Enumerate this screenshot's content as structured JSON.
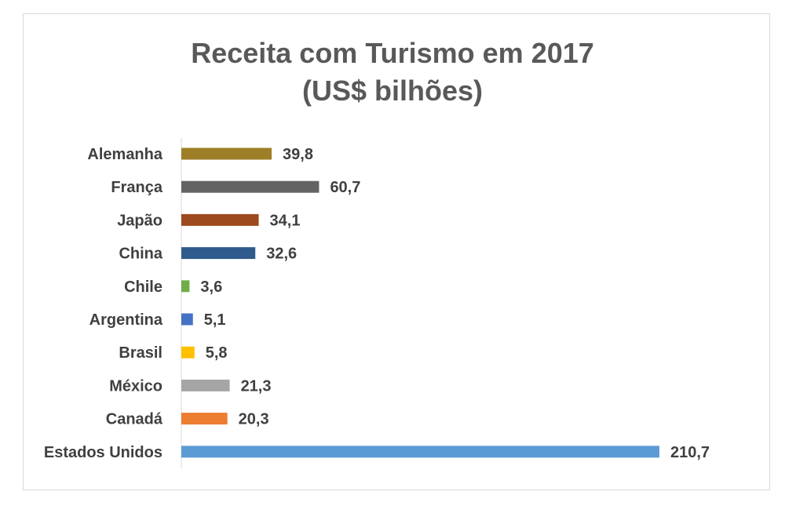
{
  "chart_data": {
    "type": "bar",
    "orientation": "horizontal",
    "title_line1": "Receita com Turismo em 2017",
    "title_line2": "(US$ bilhões)",
    "categories": [
      "Alemanha",
      "França",
      "Japão",
      "China",
      "Chile",
      "Argentina",
      "Brasil",
      "México",
      "Canadá",
      "Estados Unidos"
    ],
    "value_labels": [
      "39,8",
      "60,7",
      "34,1",
      "32,6",
      "3,6",
      "5,1",
      "5,8",
      "21,3",
      "20,3",
      "210,7"
    ],
    "values": [
      39.8,
      60.7,
      34.1,
      32.6,
      3.6,
      5.1,
      5.8,
      21.3,
      20.3,
      210.7
    ],
    "colors": [
      "#9E7F27",
      "#636363",
      "#9E4A1F",
      "#2E5A8C",
      "#70AD47",
      "#4472C4",
      "#FFC000",
      "#A5A5A5",
      "#ED7D31",
      "#5B9BD5"
    ],
    "xlim": [
      0,
      210.7
    ],
    "grid": false,
    "legend": "none",
    "xlabel": "",
    "ylabel": ""
  }
}
